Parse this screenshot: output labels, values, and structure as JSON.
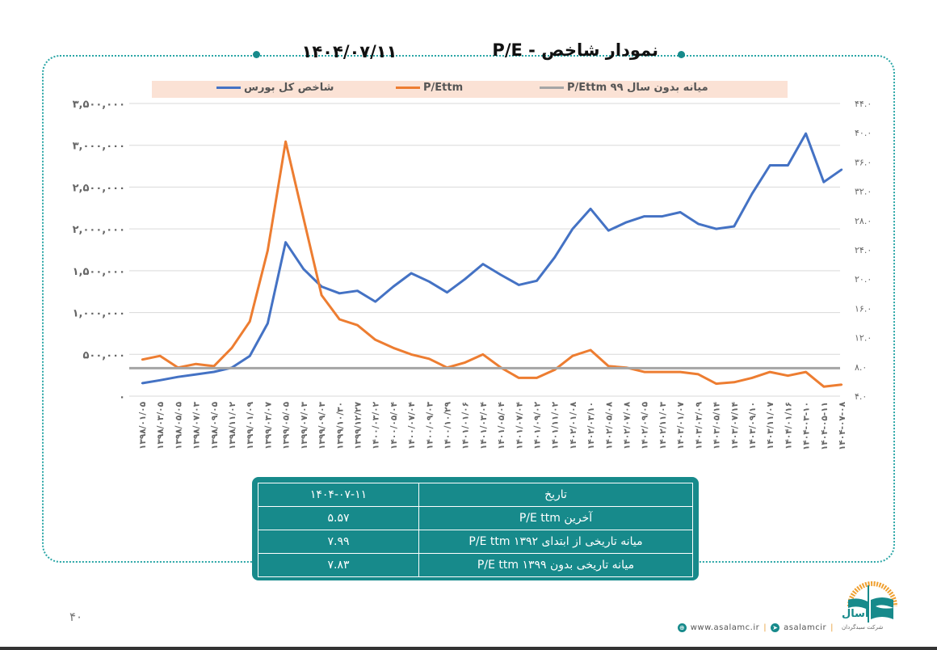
{
  "header": {
    "title": "نمودار شاخص - P/E",
    "date": "۱۴۰۴/۰۷/۱۱"
  },
  "chart_data": {
    "type": "line",
    "title": "",
    "legend_position": "top",
    "grid": true,
    "x": [
      "۱۳۹۸/۰۱/۰۵",
      "۱۳۹۸/۰۳/۰۵",
      "۱۳۹۸/۰۵/۰۵",
      "۱۳۹۸/۰۷/۰۳",
      "۱۳۹۸/۰۹/۰۵",
      "۱۳۹۸/۱۱/۰۲",
      "۱۳۹۹/۰۱/۰۹",
      "۱۳۹۹/۰۳/۰۷",
      "۱۳۹۹/۰۵/۰۵",
      "۱۳۹۹/۰۷/۰۳",
      "۱۳۹۹/۰۹/۰۳",
      "۱۳۹۹/۱۰/۳۰",
      "۱۳۹۹/۱۲/۲۷",
      "۱۴۰۰/۰۳/۰۲",
      "۱۴۰۰/۰۵/۰۴",
      "۱۴۰۰/۰۷/۰۴",
      "۱۴۰۰/۰۹/۰۳",
      "۱۴۰۰/۱۰/۲۹",
      "۱۴۰۱/۰۱/۰۶",
      "۱۴۰۱/۰۳/۰۴",
      "۱۴۰۱/۰۵/۰۴",
      "۱۴۰۱/۰۷/۰۴",
      "۱۴۰۱/۰۹/۰۲",
      "۱۴۰۱/۱۱/۰۲",
      "۱۴۰۲/۰۱/۰۸",
      "۱۴۰۲/۰۳/۱۰",
      "۱۴۰۲/۰۵/۰۸",
      "۱۴۰۲/۰۷/۰۸",
      "۱۴۰۲/۰۹/۰۵",
      "۱۴۰۲/۱۱/۰۳",
      "۱۴۰۳/۰۱/۰۷",
      "۱۴۰۳/۰۳/۰۹",
      "۱۴۰۳/۰۵/۱۴",
      "۱۴۰۳/۰۷/۱۴",
      "۱۴۰۳/۰۹/۱۰",
      "۱۴۰۳/۱۱/۰۷",
      "۱۴۰۴/۰۱/۱۶",
      "۱۴۰۴-۰۳-۱۰",
      "۱۴۰۴-۰۵-۱۱",
      "۱۴۰۴-۰۷-۰۸"
    ],
    "y_left": {
      "range": [
        0,
        3500000
      ],
      "ticks": [
        "۰",
        "۵۰۰,۰۰۰",
        "۱,۰۰۰,۰۰۰",
        "۱,۵۰۰,۰۰۰",
        "۲,۰۰۰,۰۰۰",
        "۲,۵۰۰,۰۰۰",
        "۳,۰۰۰,۰۰۰",
        "۳,۵۰۰,۰۰۰"
      ]
    },
    "y_right": {
      "range": [
        4,
        44
      ],
      "ticks": [
        "۴.۰",
        "۸.۰",
        "۱۲.۰",
        "۱۶.۰",
        "۲۰.۰",
        "۲۴.۰",
        "۲۸.۰",
        "۳۲.۰",
        "۳۶.۰",
        "۴۰.۰",
        "۴۴.۰"
      ]
    },
    "series": [
      {
        "name": "شاخص کل بورس",
        "axis": "left",
        "color": "#4472c4",
        "values": [
          155000,
          190000,
          230000,
          260000,
          290000,
          340000,
          480000,
          870000,
          1840000,
          1520000,
          1310000,
          1230000,
          1260000,
          1130000,
          1310000,
          1470000,
          1370000,
          1240000,
          1400000,
          1580000,
          1450000,
          1330000,
          1380000,
          1660000,
          2000000,
          2240000,
          1980000,
          2080000,
          2150000,
          2150000,
          2200000,
          2060000,
          2000000,
          2030000,
          2420000,
          2760000,
          2760000,
          3140000,
          2560000,
          2710000
        ]
      },
      {
        "name": "P/Ettm",
        "axis": "right",
        "color": "#ed7d31",
        "values": [
          9.0,
          9.5,
          7.9,
          8.4,
          8.1,
          10.6,
          14.2,
          23.9,
          38.8,
          28.3,
          17.8,
          14.5,
          13.7,
          11.7,
          10.6,
          9.7,
          9.1,
          7.9,
          8.6,
          9.7,
          7.9,
          6.5,
          6.5,
          7.6,
          9.5,
          10.3,
          8.1,
          7.9,
          7.3,
          7.3,
          7.3,
          7.0,
          5.7,
          5.9,
          6.5,
          7.3,
          6.8,
          7.3,
          5.3,
          5.57
        ]
      },
      {
        "name": "میانه بدون سال ۹۹ P/Ettm",
        "axis": "right",
        "color": "#a5a5a5",
        "constant": 7.83
      }
    ]
  },
  "table": {
    "rows": [
      {
        "label": "تاریخ",
        "value": "۱۴۰۴-۰۷-۱۱"
      },
      {
        "label": "آخرین P/E ttm",
        "value": "۵.۵۷"
      },
      {
        "label": "میانه تاریخی از ابتدای ۱۳۹۲ P/E ttm",
        "value": "۷.۹۹"
      },
      {
        "label": "میانه تاریخی بدون ۱۳۹۹ P/E ttm",
        "value": "۷.۸۳"
      }
    ]
  },
  "page_number": "۴۰",
  "footer": {
    "website": "www.asalamc.ir",
    "telegram": "asalamcir",
    "logo_name": "آسال",
    "logo_subtitle": "شرکت سبدگردان"
  }
}
